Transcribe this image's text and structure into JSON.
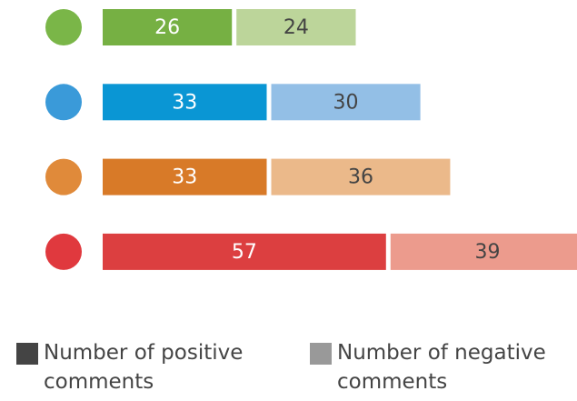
{
  "chart_data": {
    "type": "stacked-bar-horizontal",
    "categories": [
      null,
      null,
      null,
      null
    ],
    "marker_colors": [
      "#7ab648",
      "#3a9ad9",
      "#e08a3a",
      "#e0393e"
    ],
    "series": [
      {
        "name": "Number of positive comments",
        "color": "#444444",
        "point_colors": [
          "#76b043",
          "#0a96d4",
          "#d87a28",
          "#dc3f40"
        ],
        "label_color": "#ffffff",
        "values": [
          26,
          33,
          33,
          57
        ]
      },
      {
        "name": "Number of negative comments",
        "color": "#999999",
        "point_colors": [
          "#bcd59a",
          "#93bfe6",
          "#ebb98a",
          "#ec9b8d"
        ],
        "label_color": "#444444",
        "values": [
          24,
          30,
          36,
          39
        ]
      }
    ]
  }
}
